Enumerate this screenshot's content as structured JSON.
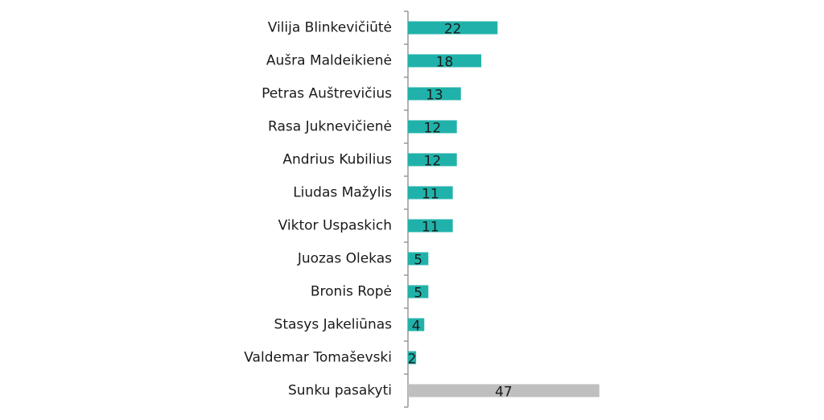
{
  "chart_data": {
    "type": "bar",
    "orientation": "horizontal",
    "categories": [
      "Vilija Blinkevičiūtė",
      "Aušra Maldeikienė",
      "Petras Auštrevičius",
      "Rasa Juknevičienė",
      "Andrius Kubilius",
      "Liudas Mažylis",
      "Viktor Uspaskich",
      "Juozas Olekas",
      "Bronis Ropė",
      "Stasys Jakeliūnas",
      "Valdemar Tomaševski",
      "Sunku pasakyti"
    ],
    "values": [
      22,
      18,
      13,
      12,
      12,
      11,
      11,
      5,
      5,
      4,
      2,
      47
    ],
    "colors": [
      "#20b2aa",
      "#20b2aa",
      "#20b2aa",
      "#20b2aa",
      "#20b2aa",
      "#20b2aa",
      "#20b2aa",
      "#20b2aa",
      "#20b2aa",
      "#20b2aa",
      "#20b2aa",
      "#bfbfbf"
    ]
  }
}
